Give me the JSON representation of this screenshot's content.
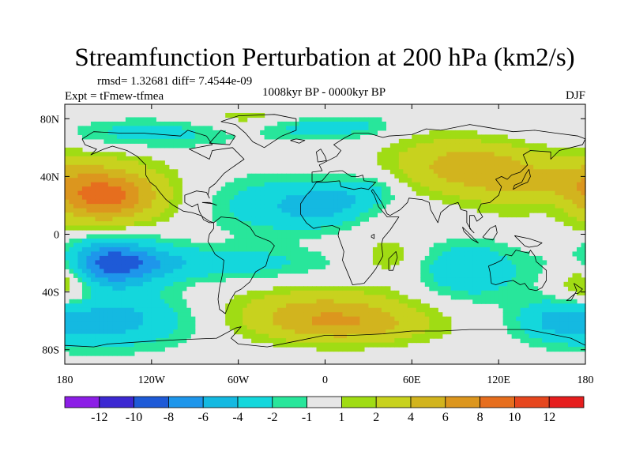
{
  "chart_data": {
    "type": "heatmap",
    "title": "Streamfunction Perturbation at 200 hPa (km2/s)",
    "stats": "rmsd= 1.32681 diff= 7.4544e-09",
    "experiment": "Expt = tFmew-tfmea",
    "period": "1008kyr BP - 0000kyr BP",
    "season": "DJF",
    "x_ticks": [
      {
        "value": -180,
        "label": "180"
      },
      {
        "value": -120,
        "label": "120W"
      },
      {
        "value": -60,
        "label": "60W"
      },
      {
        "value": 0,
        "label": "0"
      },
      {
        "value": 60,
        "label": "60E"
      },
      {
        "value": 120,
        "label": "120E"
      },
      {
        "value": 180,
        "label": "180"
      }
    ],
    "y_ticks": [
      {
        "value": 80,
        "label": "80N"
      },
      {
        "value": 40,
        "label": "40N"
      },
      {
        "value": 0,
        "label": "0"
      },
      {
        "value": -40,
        "label": "40S"
      },
      {
        "value": -80,
        "label": "80S"
      }
    ],
    "xlim": [
      -180,
      180
    ],
    "ylim": [
      -90,
      90
    ],
    "legend_position": "bottom",
    "colorbar": {
      "colors": [
        "#8c1ee6",
        "#3c28d2",
        "#1e5ad7",
        "#1e96eb",
        "#14b9e1",
        "#14d7dc",
        "#28e69b",
        "#e6e6e6",
        "#a0dc14",
        "#c8d21e",
        "#d2b41e",
        "#dc961e",
        "#e66e1e",
        "#e6461e",
        "#e61e1e"
      ],
      "labels": [
        "-12",
        "-10",
        "-8",
        "-6",
        "-4",
        "-2",
        "-1",
        "1",
        "2",
        "4",
        "6",
        "8",
        "10",
        "12"
      ]
    },
    "field_levels": [
      -12,
      -10,
      -8,
      -6,
      -4,
      -2,
      -1,
      1,
      2,
      4,
      6,
      8,
      10,
      12
    ],
    "field_centers": [
      {
        "lon": -175,
        "lat": 30,
        "amp": 6.5,
        "slon": 40,
        "slat": 16
      },
      {
        "lon": -145,
        "lat": 25,
        "amp": 4.0,
        "slon": 22,
        "slat": 12
      },
      {
        "lon": -150,
        "lat": -20,
        "amp": -9.0,
        "slon": 28,
        "slat": 12
      },
      {
        "lon": -70,
        "lat": -20,
        "amp": -3.0,
        "slon": 50,
        "slat": 8
      },
      {
        "lon": -150,
        "lat": -60,
        "amp": -5.0,
        "slon": 40,
        "slat": 13
      },
      {
        "lon": -40,
        "lat": 20,
        "amp": -3.0,
        "slon": 30,
        "slat": 15
      },
      {
        "lon": 0,
        "lat": 20,
        "amp": -4.0,
        "slon": 20,
        "slat": 10
      },
      {
        "lon": 30,
        "lat": 30,
        "amp": -2.5,
        "slon": 15,
        "slat": 8
      },
      {
        "lon": -120,
        "lat": 70,
        "amp": -3.0,
        "slon": 40,
        "slat": 7
      },
      {
        "lon": -40,
        "lat": 80,
        "amp": 2.0,
        "slon": 35,
        "slat": 6
      },
      {
        "lon": -20,
        "lat": 75,
        "amp": -3.0,
        "slon": 20,
        "slat": 6
      },
      {
        "lon": 20,
        "lat": 75,
        "amp": -2.5,
        "slon": 20,
        "slat": 6
      },
      {
        "lon": 110,
        "lat": 45,
        "amp": 4.5,
        "slon": 25,
        "slat": 13
      },
      {
        "lon": 70,
        "lat": 50,
        "amp": 2.5,
        "slon": 25,
        "slat": 14
      },
      {
        "lon": 45,
        "lat": -15,
        "amp": 2.0,
        "slon": 15,
        "slat": 10
      },
      {
        "lon": 100,
        "lat": -25,
        "amp": -4.0,
        "slon": 25,
        "slat": 14
      },
      {
        "lon": 180,
        "lat": -30,
        "amp": 5.0,
        "slon": 14,
        "slat": 14
      },
      {
        "lon": 160,
        "lat": -60,
        "amp": -3.0,
        "slon": 20,
        "slat": 10
      },
      {
        "lon": 0,
        "lat": -55,
        "amp": 5.0,
        "slon": 45,
        "slat": 12
      },
      {
        "lon": 20,
        "lat": -65,
        "amp": 2.5,
        "slon": 40,
        "slat": 8
      },
      {
        "lon": 160,
        "lat": 20,
        "amp": -2.5,
        "slon": 18,
        "slat": 10
      }
    ]
  }
}
